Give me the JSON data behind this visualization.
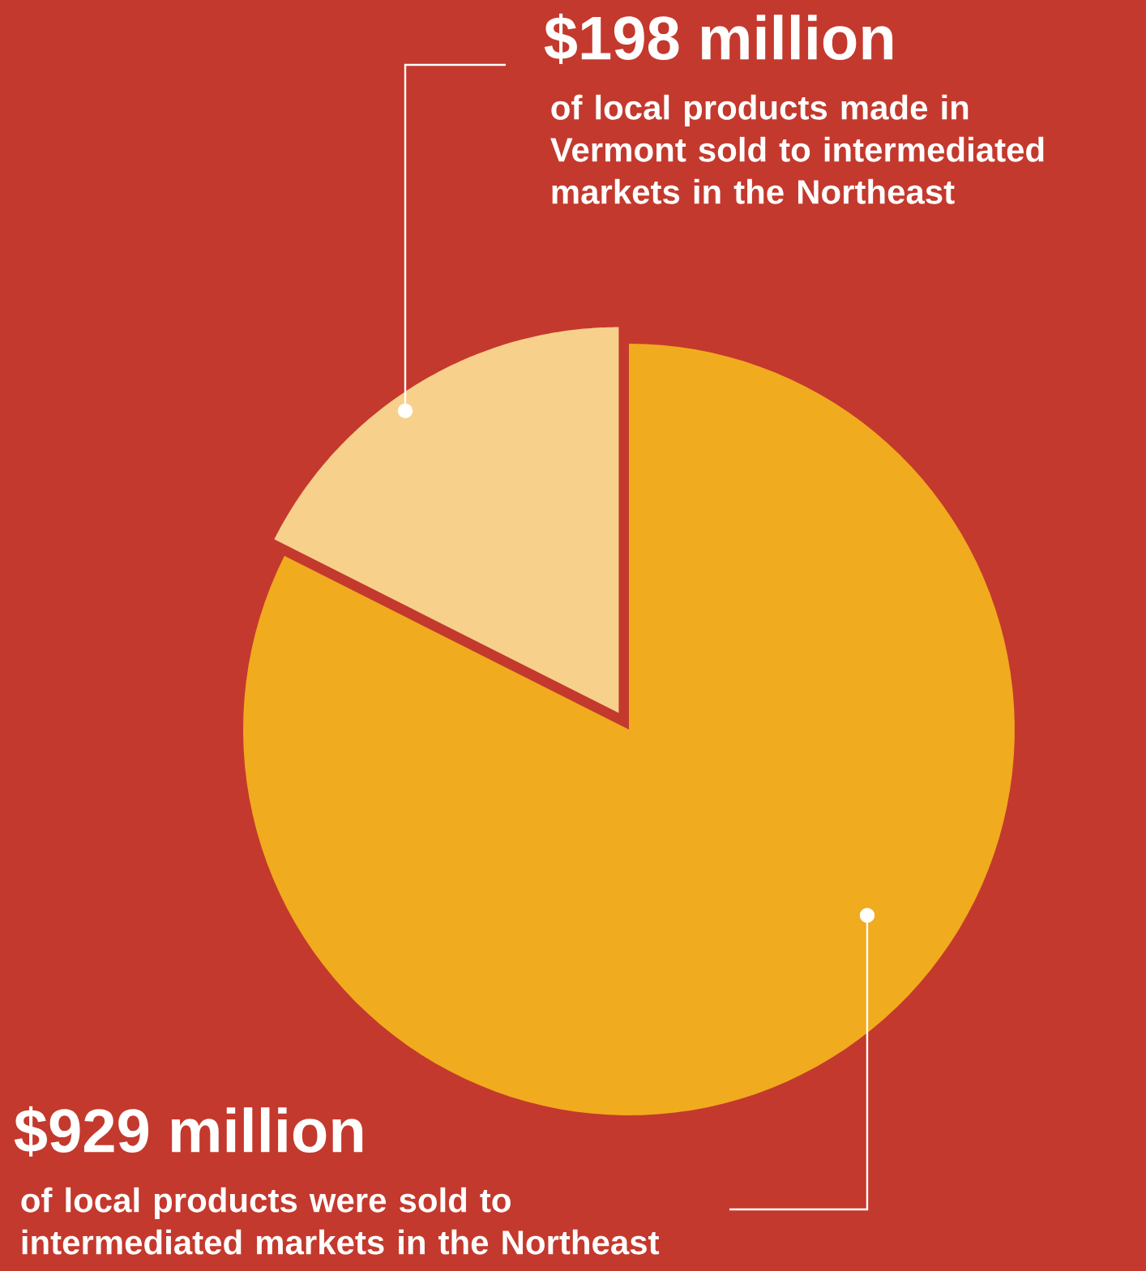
{
  "chart_data": {
    "type": "pie",
    "categories": [
      "of local products were sold to intermediated markets in the Northeast",
      "of local products made in Vermont sold to intermediated markets in the Northeast"
    ],
    "values": [
      929,
      198
    ],
    "colors": [
      "#f0ab1e",
      "#f7d08c"
    ],
    "value_labels": [
      "$929 million",
      "$198 million"
    ]
  }
}
